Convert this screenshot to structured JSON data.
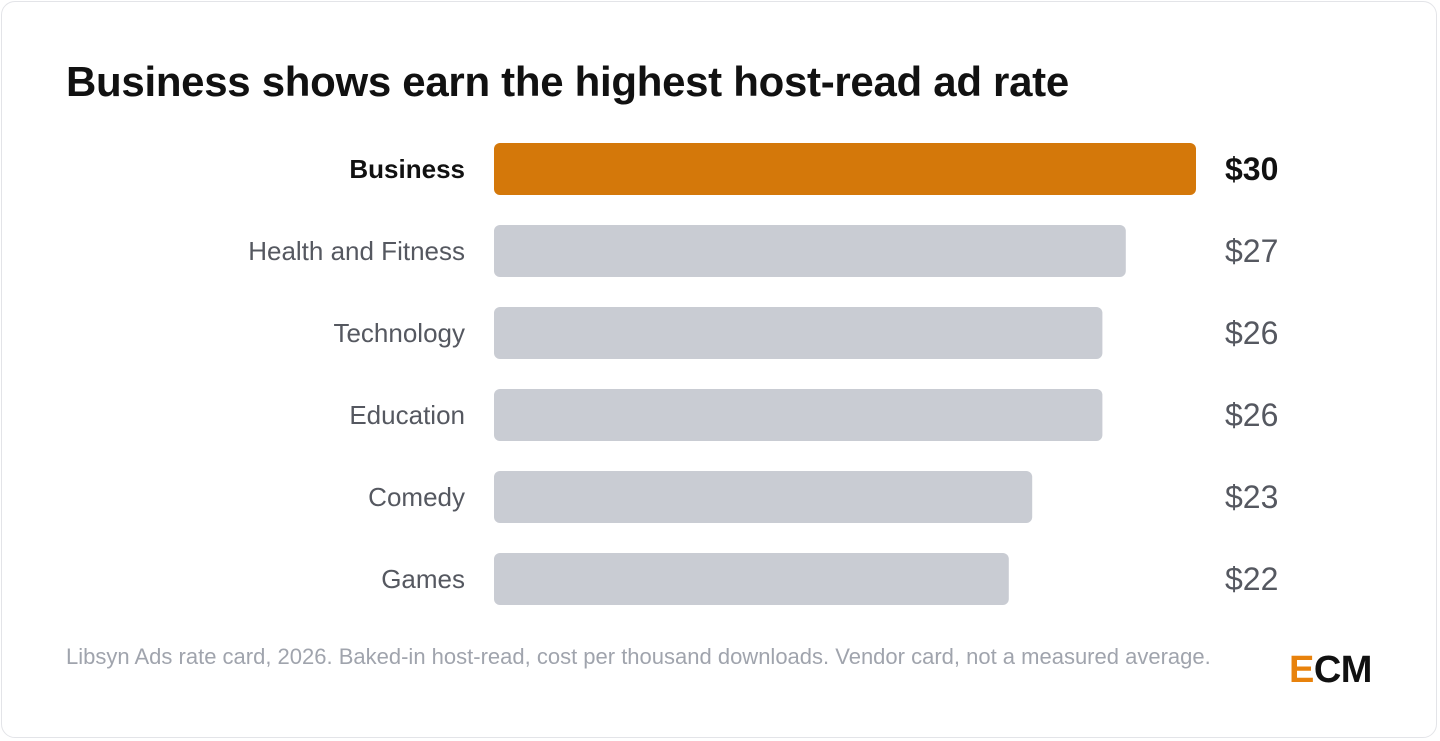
{
  "title": "Business shows earn the highest host-read ad rate",
  "footer": {
    "source": "Libsyn Ads rate card, 2026. Baked-in host-read, cost per thousand downloads. Vendor card, not a measured average."
  },
  "logo": {
    "first_letter": "E",
    "rest": "CM"
  },
  "colors": {
    "highlight": "#d4780a",
    "default_bar": "#c9ccd3",
    "highlight_text": "#111111",
    "default_text": "#555860"
  },
  "chart_data": {
    "type": "bar",
    "orientation": "horizontal",
    "categories": [
      "Business",
      "Health and Fitness",
      "Technology",
      "Education",
      "Comedy",
      "Games"
    ],
    "values": [
      30,
      27,
      26,
      26,
      23,
      22
    ],
    "value_labels": [
      "$30",
      "$27",
      "$26",
      "$26",
      "$23",
      "$22"
    ],
    "highlighted": [
      "Business"
    ],
    "xlim": [
      0,
      30
    ],
    "grid": false,
    "legend": "none"
  }
}
